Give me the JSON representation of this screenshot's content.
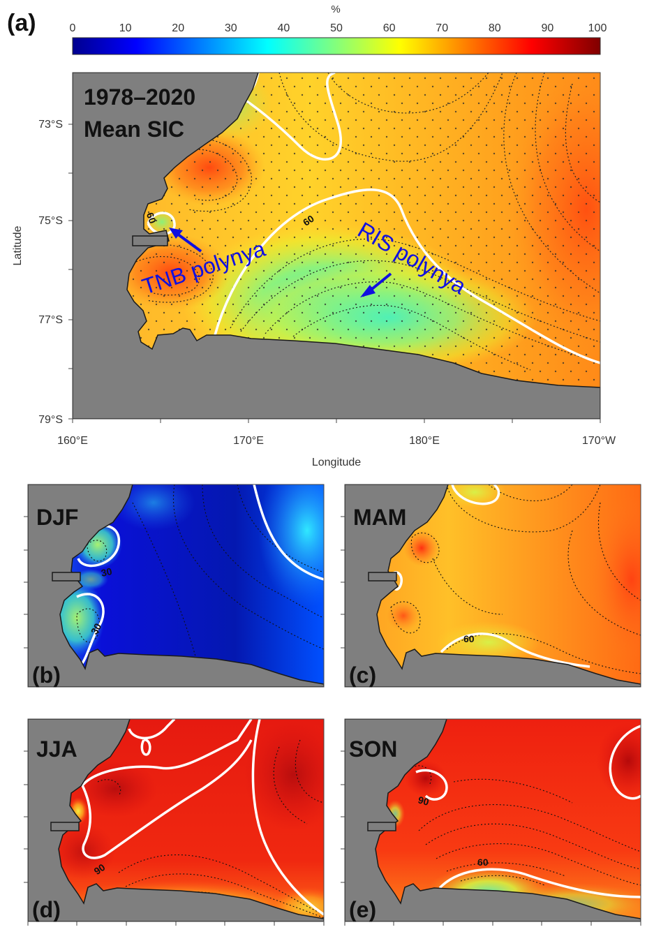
{
  "figure": {
    "panel_a": {
      "label": "(a)",
      "title_line1": "1978–2020",
      "title_line2": "Mean SIC",
      "ylabel": "Latitude",
      "xlabel": "Longitude",
      "lat_ticks": [
        "73°S",
        "75°S",
        "77°S",
        "79°S"
      ],
      "lon_ticks": [
        "160°E",
        "170°E",
        "180°E",
        "170°W"
      ],
      "contour_labels": [
        "60",
        "60"
      ],
      "annotations": [
        "TNB polynya",
        "RIS polynya"
      ]
    },
    "colorbar": {
      "unit": "%",
      "ticks": [
        "0",
        "10",
        "20",
        "30",
        "40",
        "50",
        "60",
        "70",
        "80",
        "90",
        "100"
      ],
      "colormap": "jet",
      "range": [
        0,
        100
      ]
    },
    "panel_b": {
      "label": "(b)",
      "season": "DJF",
      "contour_labels": [
        "30",
        "30"
      ]
    },
    "panel_c": {
      "label": "(c)",
      "season": "MAM",
      "contour_labels": [
        "60"
      ]
    },
    "panel_d": {
      "label": "(d)",
      "season": "JJA",
      "contour_labels": [
        "90"
      ]
    },
    "panel_e": {
      "label": "(e)",
      "season": "SON",
      "contour_labels": [
        "90",
        "60"
      ]
    },
    "colors": {
      "land": "#7f7f7f",
      "annotation_blue": "#1010e0",
      "contour_highlight": "#ffffff"
    }
  }
}
